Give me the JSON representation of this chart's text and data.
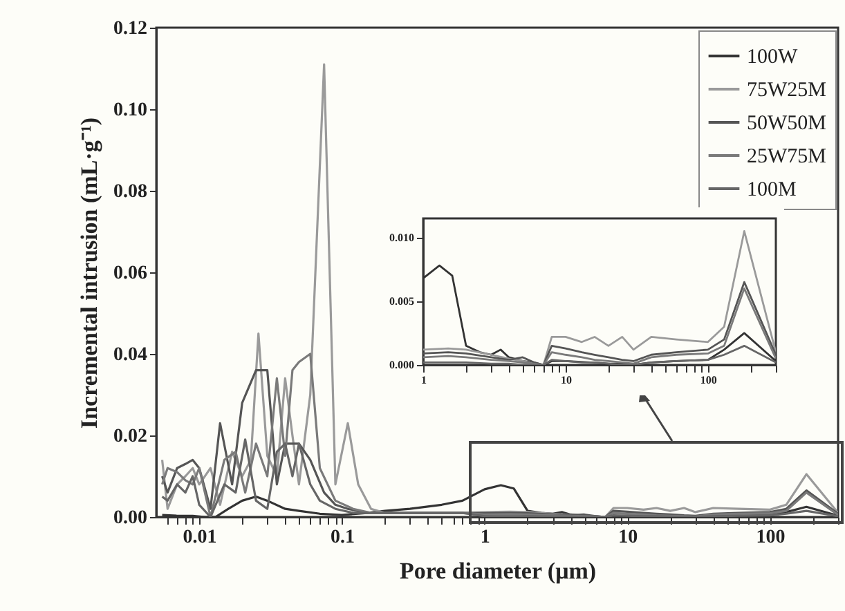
{
  "chart_data": [
    {
      "type": "line",
      "xlabel": "Pore diameter (μm)",
      "ylabel": "Incremental intrusion (mL·g⁻¹)",
      "log": "x",
      "legend": "top right",
      "grid": false,
      "xlim": [
        0.005,
        300
      ],
      "ylim": [
        0,
        0.12
      ],
      "xticks": [
        {
          "value": 0.006,
          "label": null
        },
        {
          "value": 0.007,
          "label": null
        },
        {
          "value": 0.008,
          "label": null
        },
        {
          "value": 0.009,
          "label": null
        },
        0.01,
        {
          "value": 0.02,
          "label": null
        },
        {
          "value": 0.03,
          "label": null
        },
        {
          "value": 0.04,
          "label": null
        },
        {
          "value": 0.05,
          "label": null
        },
        {
          "value": 0.06,
          "label": null
        },
        {
          "value": 0.07,
          "label": null
        },
        {
          "value": 0.08,
          "label": null
        },
        {
          "value": 0.09,
          "label": null
        },
        0.1,
        {
          "value": 0.2,
          "label": null
        },
        {
          "value": 0.3,
          "label": null
        },
        {
          "value": 0.4,
          "label": null
        },
        {
          "value": 0.5,
          "label": null
        },
        {
          "value": 0.6,
          "label": null
        },
        {
          "value": 0.7,
          "label": null
        },
        {
          "value": 0.8,
          "label": null
        },
        {
          "value": 0.9,
          "label": null
        },
        1,
        {
          "value": 2,
          "label": null
        },
        {
          "value": 3,
          "label": null
        },
        {
          "value": 4,
          "label": null
        },
        {
          "value": 5,
          "label": null
        },
        {
          "value": 6,
          "label": null
        },
        {
          "value": 7,
          "label": null
        },
        {
          "value": 8,
          "label": null
        },
        {
          "value": 9,
          "label": null
        },
        10,
        {
          "value": 20,
          "label": null
        },
        {
          "value": 30,
          "label": null
        },
        {
          "value": 40,
          "label": null
        },
        {
          "value": 50,
          "label": null
        },
        {
          "value": 60,
          "label": null
        },
        {
          "value": 70,
          "label": null
        },
        {
          "value": 80,
          "label": null
        },
        {
          "value": 90,
          "label": null
        },
        100,
        {
          "value": 200,
          "label": null
        },
        {
          "value": 300,
          "label": null
        }
      ],
      "yticks": [
        {
          "value": 0,
          "label": "0.00"
        },
        {
          "value": 0.02,
          "label": "0.02"
        },
        {
          "value": 0.04,
          "label": "0.04"
        },
        {
          "value": 0.06,
          "label": "0.06"
        },
        {
          "value": 0.08,
          "label": "0.08"
        },
        {
          "value": 0.1,
          "label": "0.10"
        },
        {
          "value": 0.12,
          "label": "0.12"
        }
      ],
      "series": [
        {
          "name": "100W",
          "color": "#333333",
          "x": [
            0.0055,
            0.007,
            0.009,
            0.011,
            0.013,
            0.016,
            0.02,
            0.025,
            0.03,
            0.04,
            0.05,
            0.07,
            0.1,
            0.15,
            0.2,
            0.3,
            0.5,
            0.7,
            1,
            1.3,
            1.6,
            2,
            2.5,
            3,
            3.5,
            4,
            5,
            6,
            7,
            8,
            10,
            15,
            20,
            25,
            30,
            40,
            60,
            100,
            130,
            180,
            300
          ],
          "values": [
            0.0005,
            0.0003,
            0.0003,
            0,
            0,
            0.002,
            0.004,
            0.005,
            0.004,
            0.002,
            0.0015,
            0.0008,
            0.0005,
            0.001,
            0.0015,
            0.002,
            0.003,
            0.004,
            0.0068,
            0.0078,
            0.007,
            0.0015,
            0.001,
            0.0008,
            0.0012,
            0.0006,
            0.0003,
            0.0002,
            0,
            0.0003,
            0.0003,
            0.0002,
            0.0001,
            0.0001,
            0,
            0.0002,
            0.0003,
            0.0004,
            0.0012,
            0.0025,
            0.0003
          ]
        },
        {
          "name": "75W25M",
          "color": "#9a9a9a",
          "x": [
            0.0055,
            0.006,
            0.007,
            0.008,
            0.009,
            0.01,
            0.012,
            0.014,
            0.017,
            0.02,
            0.023,
            0.026,
            0.03,
            0.035,
            0.04,
            0.045,
            0.05,
            0.06,
            0.075,
            0.09,
            0.11,
            0.13,
            0.16,
            0.2,
            0.3,
            0.5,
            0.7,
            1,
            1.5,
            2,
            3,
            4,
            5,
            6,
            7,
            8,
            10,
            13,
            16,
            20,
            25,
            30,
            40,
            60,
            100,
            130,
            180,
            300
          ],
          "values": [
            0.014,
            0.002,
            0.008,
            0.01,
            0.012,
            0.008,
            0.012,
            0.003,
            0.016,
            0.01,
            0.014,
            0.045,
            0.015,
            0.01,
            0.034,
            0.02,
            0.008,
            0.03,
            0.111,
            0.008,
            0.023,
            0.008,
            0.002,
            0.001,
            0.001,
            0.001,
            0.001,
            0.0012,
            0.0013,
            0.0012,
            0.0008,
            0.0005,
            0.0003,
            0.0001,
            0,
            0.0022,
            0.0022,
            0.0018,
            0.0022,
            0.0015,
            0.0022,
            0.0012,
            0.0022,
            0.002,
            0.0018,
            0.003,
            0.0105,
            0.001
          ]
        },
        {
          "name": "50W50M",
          "color": "#555555",
          "x": [
            0.0055,
            0.006,
            0.007,
            0.008,
            0.009,
            0.01,
            0.012,
            0.014,
            0.017,
            0.02,
            0.025,
            0.03,
            0.035,
            0.04,
            0.05,
            0.06,
            0.075,
            0.09,
            0.11,
            0.15,
            0.2,
            0.3,
            0.5,
            0.7,
            1,
            1.5,
            2,
            3,
            4,
            5,
            6,
            7,
            8,
            10,
            13,
            16,
            20,
            25,
            30,
            40,
            60,
            100,
            130,
            180,
            300
          ],
          "values": [
            0.01,
            0.006,
            0.012,
            0.013,
            0.014,
            0.012,
            0.002,
            0.023,
            0.008,
            0.028,
            0.036,
            0.036,
            0.008,
            0.018,
            0.018,
            0.014,
            0.006,
            0.003,
            0.002,
            0.001,
            0.001,
            0.001,
            0.001,
            0.001,
            0.0009,
            0.001,
            0.0009,
            0.0006,
            0.0004,
            0.0006,
            0.0002,
            0,
            0.0015,
            0.0013,
            0.001,
            0.0008,
            0.0006,
            0.0004,
            0.0003,
            0.0008,
            0.001,
            0.0012,
            0.002,
            0.0065,
            0.0008
          ]
        },
        {
          "name": "25W75M",
          "color": "#7a7a7a",
          "x": [
            0.0055,
            0.006,
            0.007,
            0.008,
            0.009,
            0.01,
            0.012,
            0.015,
            0.018,
            0.021,
            0.025,
            0.03,
            0.035,
            0.04,
            0.045,
            0.05,
            0.06,
            0.07,
            0.09,
            0.12,
            0.16,
            0.2,
            0.3,
            0.5,
            0.7,
            1,
            1.5,
            2,
            3,
            4,
            5,
            6,
            7,
            8,
            10,
            13,
            16,
            20,
            25,
            30,
            40,
            60,
            100,
            130,
            180,
            300
          ],
          "values": [
            0.008,
            0.012,
            0.011,
            0.009,
            0.008,
            0.012,
            0,
            0.014,
            0.016,
            0.006,
            0.018,
            0.01,
            0.034,
            0.015,
            0.036,
            0.038,
            0.04,
            0.012,
            0.004,
            0.002,
            0.001,
            0.001,
            0.001,
            0.001,
            0.001,
            0.0006,
            0.0007,
            0.0006,
            0.0004,
            0.0003,
            0.0002,
            0.0001,
            0,
            0.001,
            0.0008,
            0.0006,
            0.0004,
            0.0003,
            0.0002,
            0.0001,
            0.0006,
            0.0008,
            0.0009,
            0.0015,
            0.006,
            0.0005
          ]
        },
        {
          "name": "100M",
          "color": "#666666",
          "x": [
            0.0055,
            0.006,
            0.007,
            0.008,
            0.009,
            0.01,
            0.012,
            0.015,
            0.018,
            0.021,
            0.025,
            0.03,
            0.035,
            0.04,
            0.045,
            0.05,
            0.06,
            0.07,
            0.09,
            0.12,
            0.16,
            0.2,
            0.3,
            0.5,
            0.7,
            1,
            1.5,
            2,
            3,
            4,
            5,
            6,
            7,
            8,
            10,
            13,
            16,
            20,
            25,
            30,
            40,
            60,
            100,
            130,
            180,
            300
          ],
          "values": [
            0.005,
            0.004,
            0.008,
            0.006,
            0.01,
            0.003,
            0,
            0.008,
            0.006,
            0.019,
            0.004,
            0.002,
            0.016,
            0.018,
            0.01,
            0.018,
            0.008,
            0.004,
            0.002,
            0.001,
            0.001,
            0.001,
            0.001,
            0.001,
            0.001,
            0.0002,
            0.0002,
            0.0002,
            0.0001,
            0.0001,
            0,
            0,
            0,
            0.0004,
            0.0003,
            0.0002,
            0.0002,
            0.0001,
            0,
            0,
            0.0002,
            0.0003,
            0.0004,
            0.0008,
            0.0015,
            0.0002
          ]
        }
      ]
    },
    {
      "type": "line",
      "log": "x",
      "legend": false,
      "grid": false,
      "xlim": [
        1,
        300
      ],
      "ylim": [
        0,
        0.0115
      ],
      "xticks": [
        1,
        {
          "value": 2,
          "label": null
        },
        {
          "value": 3,
          "label": null
        },
        {
          "value": 4,
          "label": null
        },
        {
          "value": 5,
          "label": null
        },
        {
          "value": 6,
          "label": null
        },
        {
          "value": 7,
          "label": null
        },
        {
          "value": 8,
          "label": null
        },
        {
          "value": 9,
          "label": null
        },
        10,
        {
          "value": 20,
          "label": null
        },
        {
          "value": 30,
          "label": null
        },
        {
          "value": 40,
          "label": null
        },
        {
          "value": 50,
          "label": null
        },
        {
          "value": 60,
          "label": null
        },
        {
          "value": 70,
          "label": null
        },
        {
          "value": 80,
          "label": null
        },
        {
          "value": 90,
          "label": null
        },
        100,
        {
          "value": 200,
          "label": null
        },
        {
          "value": 300,
          "label": null
        }
      ],
      "yticks": [
        {
          "value": 0,
          "label": "0.000"
        },
        {
          "value": 0.005,
          "label": "0.005"
        },
        {
          "value": 0.01,
          "label": "0.010"
        }
      ],
      "series": [
        {
          "color": "#333333",
          "x": [
            1,
            1.3,
            1.6,
            2,
            2.5,
            3,
            3.5,
            4,
            5,
            6,
            7,
            8,
            10,
            15,
            20,
            25,
            30,
            40,
            60,
            100,
            130,
            180,
            300
          ],
          "values": [
            0.0068,
            0.0078,
            0.007,
            0.0015,
            0.001,
            0.0008,
            0.0012,
            0.0006,
            0.0003,
            0.0002,
            0,
            0.0003,
            0.0003,
            0.0002,
            0.0001,
            0.0001,
            0,
            0.0002,
            0.0003,
            0.0004,
            0.0012,
            0.0025,
            0.0003
          ]
        },
        {
          "color": "#9a9a9a",
          "x": [
            1,
            1.5,
            2,
            3,
            4,
            5,
            6,
            7,
            8,
            10,
            13,
            16,
            20,
            25,
            30,
            40,
            60,
            100,
            130,
            180,
            300
          ],
          "values": [
            0.0012,
            0.0013,
            0.0012,
            0.0008,
            0.0005,
            0.0003,
            0.0001,
            0,
            0.0022,
            0.0022,
            0.0018,
            0.0022,
            0.0015,
            0.0022,
            0.0012,
            0.0022,
            0.002,
            0.0018,
            0.003,
            0.0105,
            0.001
          ]
        },
        {
          "color": "#555555",
          "x": [
            1,
            1.5,
            2,
            3,
            4,
            5,
            6,
            7,
            8,
            10,
            13,
            16,
            20,
            25,
            30,
            40,
            60,
            100,
            130,
            180,
            300
          ],
          "values": [
            0.0009,
            0.001,
            0.0009,
            0.0006,
            0.0004,
            0.0006,
            0.0002,
            0,
            0.0015,
            0.0013,
            0.001,
            0.0008,
            0.0006,
            0.0004,
            0.0003,
            0.0008,
            0.001,
            0.0012,
            0.002,
            0.0065,
            0.0008
          ]
        },
        {
          "color": "#7a7a7a",
          "x": [
            1,
            1.5,
            2,
            3,
            4,
            5,
            6,
            7,
            8,
            10,
            13,
            16,
            20,
            25,
            30,
            40,
            60,
            100,
            130,
            180,
            300
          ],
          "values": [
            0.0006,
            0.0007,
            0.0006,
            0.0004,
            0.0003,
            0.0002,
            0.0001,
            0,
            0.001,
            0.0008,
            0.0006,
            0.0004,
            0.0003,
            0.0002,
            0.0001,
            0.0006,
            0.0008,
            0.0009,
            0.0015,
            0.006,
            0.0005
          ]
        },
        {
          "color": "#666666",
          "x": [
            1,
            1.5,
            2,
            3,
            4,
            5,
            6,
            7,
            8,
            10,
            13,
            16,
            20,
            25,
            30,
            40,
            60,
            100,
            130,
            180,
            300
          ],
          "values": [
            0.0002,
            0.0002,
            0.0002,
            0.0001,
            0.0001,
            0,
            0,
            0,
            0.0004,
            0.0003,
            0.0002,
            0.0002,
            0.0001,
            0,
            0,
            0.0002,
            0.0003,
            0.0004,
            0.0008,
            0.0015,
            0.0002
          ]
        }
      ]
    }
  ]
}
